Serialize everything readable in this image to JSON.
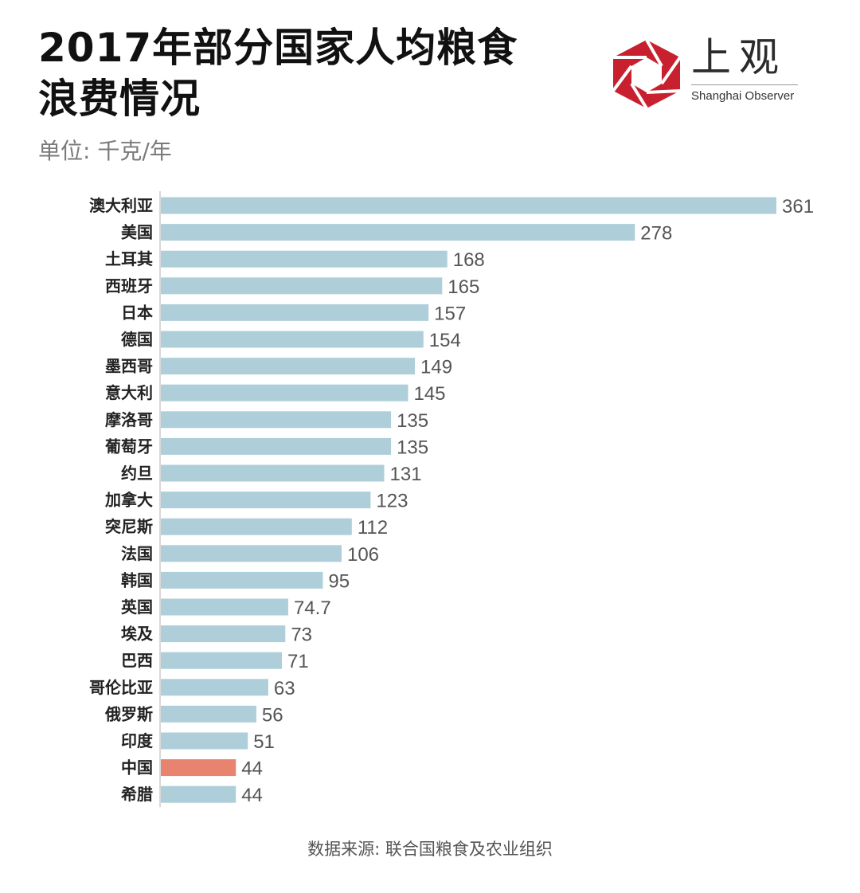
{
  "title_lines": [
    "2017年部分国家人均粮食",
    "浪费情况"
  ],
  "unit": "单位: 千克/年",
  "logo": {
    "chinese": "上观",
    "english": "Shanghai Observer",
    "icon": "hexagon-aperture-logo",
    "color": "#c8202f"
  },
  "source": "数据来源: 联合国粮食及农业组织",
  "colors": {
    "bar": "#aecfd9",
    "highlight": "#e8836f",
    "axis": "#cccccc",
    "label": "#222222",
    "value": "#555555"
  },
  "chart_data": {
    "type": "bar",
    "orientation": "horizontal",
    "title": "2017年部分国家人均粮食浪费情况",
    "xlabel": "单位: 千克/年",
    "ylabel": "",
    "xlim": [
      0,
      361
    ],
    "grid": false,
    "categories": [
      "澳大利亚",
      "美国",
      "土耳其",
      "西班牙",
      "日本",
      "德国",
      "墨西哥",
      "意大利",
      "摩洛哥",
      "葡萄牙",
      "约旦",
      "加拿大",
      "突尼斯",
      "法国",
      "韩国",
      "英国",
      "埃及",
      "巴西",
      "哥伦比亚",
      "俄罗斯",
      "印度",
      "中国",
      "希腊"
    ],
    "values": [
      361,
      278,
      168,
      165,
      157,
      154,
      149,
      145,
      135,
      135,
      131,
      123,
      112,
      106,
      95,
      74.7,
      73,
      71,
      63,
      56,
      51,
      44,
      44
    ],
    "value_labels": [
      "361",
      "278",
      "168",
      "165",
      "157",
      "154",
      "149",
      "145",
      "135",
      "135",
      "131",
      "123",
      "112",
      "106",
      "95",
      "74.7",
      "73",
      "71",
      "63",
      "56",
      "51",
      "44",
      "44"
    ],
    "highlight": "中国"
  }
}
